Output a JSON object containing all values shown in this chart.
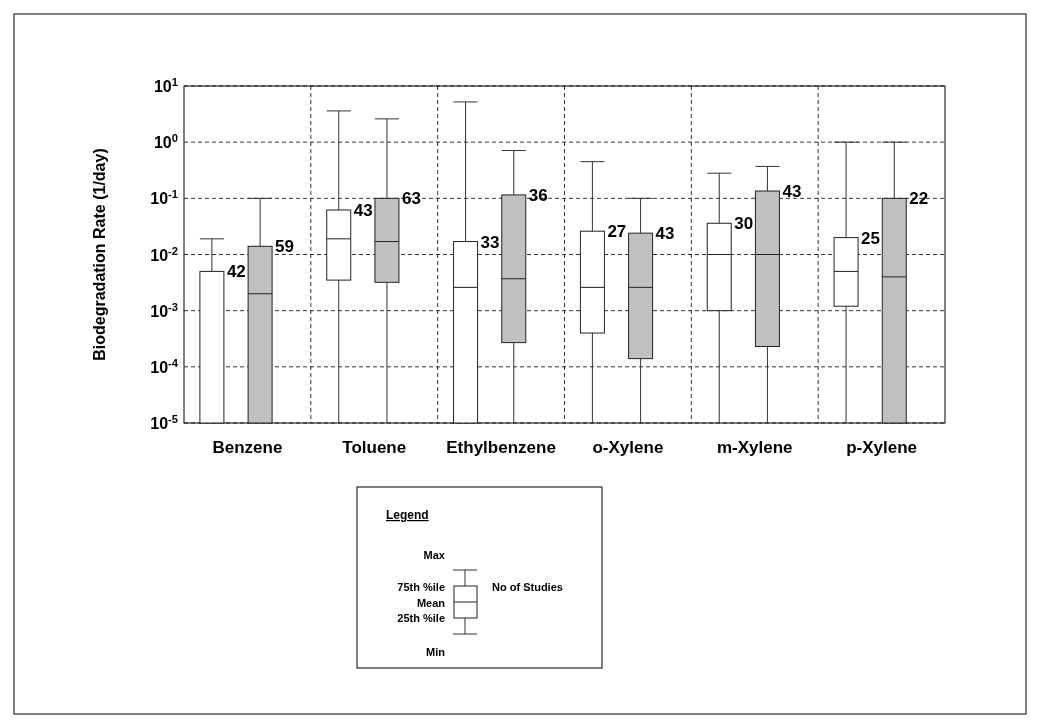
{
  "chart_data": {
    "type": "box",
    "ylabel": "Biodegradation Rate (1/day)",
    "categories": [
      "Benzene",
      "Toluene",
      "Ethylbenzene",
      "o-Xylene",
      "m-Xylene",
      "p-Xylene"
    ],
    "log": true,
    "grid": true,
    "line_style": "dashed",
    "ylim": [
      1e-05,
      10
    ],
    "yticks": [
      {
        "value": 1e-05,
        "label": "10$^{-5}$"
      },
      {
        "value": 0.0001,
        "label": "10$^{-4}$"
      },
      {
        "value": 0.001,
        "label": "10$^{-3}$"
      },
      {
        "value": 0.01,
        "label": "10$^{-2}$"
      },
      {
        "value": 0.1,
        "label": "10$^{-1}$"
      },
      {
        "value": 1,
        "label": "10$^{0}$"
      },
      {
        "value": 10,
        "label": "10$^{1}$"
      }
    ],
    "series": [
      {
        "color": "#ffffff",
        "value_labels": [
          "42",
          "43",
          "33",
          "27",
          "30",
          "25"
        ],
        "boxes": [
          {
            "low": 1e-05,
            "q1": 1e-05,
            "q3": 0.005,
            "high": 0.019
          },
          {
            "low": 1e-05,
            "q1": 0.0035,
            "mean": 0.019,
            "q3": 0.062,
            "high": 3.6
          },
          {
            "low": 1e-05,
            "q1": 1e-05,
            "mean": 0.0026,
            "q3": 0.017,
            "high": 5.2
          },
          {
            "low": 1e-05,
            "q1": 0.0004,
            "mean": 0.0026,
            "q3": 0.026,
            "high": 0.45
          },
          {
            "low": 1e-05,
            "q1": 0.001,
            "mean": 0.01,
            "q3": 0.036,
            "high": 0.28
          },
          {
            "low": 1e-05,
            "q1": 0.0012,
            "mean": 0.005,
            "q3": 0.02,
            "high": 1
          }
        ]
      },
      {
        "color": "#c0c0c0",
        "value_labels": [
          "59",
          "63",
          "36",
          "43",
          "43",
          "22"
        ],
        "boxes": [
          {
            "low": 1e-05,
            "q1": 1e-05,
            "mean": 0.002,
            "q3": 0.014,
            "high": 0.1
          },
          {
            "low": 1e-05,
            "q1": 0.0032,
            "mean": 0.017,
            "q3": 0.1,
            "high": 2.6
          },
          {
            "low": 1e-05,
            "q1": 0.00027,
            "mean": 0.0037,
            "q3": 0.115,
            "high": 0.71
          },
          {
            "low": 1e-05,
            "q1": 0.00014,
            "mean": 0.0026,
            "q3": 0.024,
            "high": 0.1
          },
          {
            "low": 1e-05,
            "q1": 0.00023,
            "mean": 0.01,
            "q3": 0.135,
            "high": 0.37
          },
          {
            "low": 1e-05,
            "q1": 1e-05,
            "mean": 0.004,
            "q3": 0.1,
            "high": 1
          }
        ]
      }
    ],
    "annotations": [
      "Legend",
      "Max",
      "75th %ile",
      "Mean",
      "25th %ile",
      "Min",
      "No of Studies"
    ]
  }
}
